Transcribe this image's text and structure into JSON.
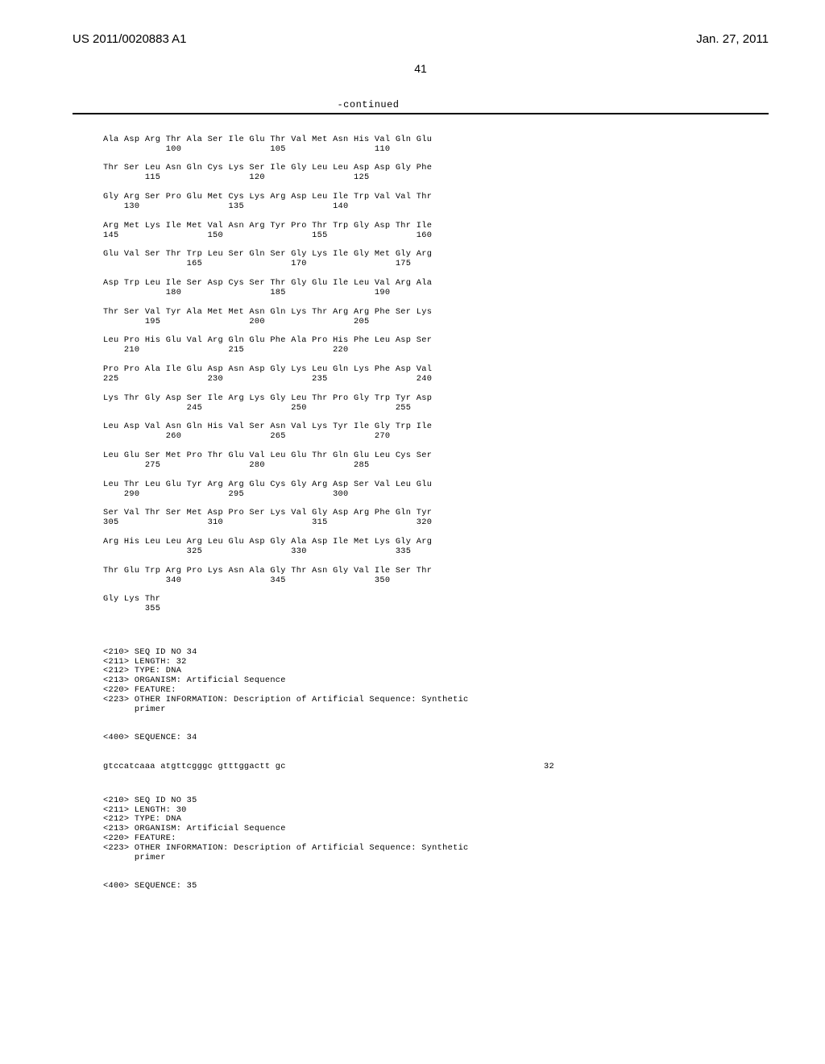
{
  "header": {
    "pub_no": "US 2011/0020883 A1",
    "pub_date": "Jan. 27, 2011"
  },
  "page_number": "41",
  "continued_label": "-continued",
  "protein_rows": [
    {
      "aa": "Ala Asp Arg Thr Ala Ser Ile Glu Thr Val Met Asn His Val Gln Glu",
      "nums": "            100                 105                 110"
    },
    {
      "aa": "Thr Ser Leu Asn Gln Cys Lys Ser Ile Gly Leu Leu Asp Asp Gly Phe",
      "nums": "        115                 120                 125"
    },
    {
      "aa": "Gly Arg Ser Pro Glu Met Cys Lys Arg Asp Leu Ile Trp Val Val Thr",
      "nums": "    130                 135                 140"
    },
    {
      "aa": "Arg Met Lys Ile Met Val Asn Arg Tyr Pro Thr Trp Gly Asp Thr Ile",
      "nums": "145                 150                 155                 160"
    },
    {
      "aa": "Glu Val Ser Thr Trp Leu Ser Gln Ser Gly Lys Ile Gly Met Gly Arg",
      "nums": "                165                 170                 175"
    },
    {
      "aa": "Asp Trp Leu Ile Ser Asp Cys Ser Thr Gly Glu Ile Leu Val Arg Ala",
      "nums": "            180                 185                 190"
    },
    {
      "aa": "Thr Ser Val Tyr Ala Met Met Asn Gln Lys Thr Arg Arg Phe Ser Lys",
      "nums": "        195                 200                 205"
    },
    {
      "aa": "Leu Pro His Glu Val Arg Gln Glu Phe Ala Pro His Phe Leu Asp Ser",
      "nums": "    210                 215                 220"
    },
    {
      "aa": "Pro Pro Ala Ile Glu Asp Asn Asp Gly Lys Leu Gln Lys Phe Asp Val",
      "nums": "225                 230                 235                 240"
    },
    {
      "aa": "Lys Thr Gly Asp Ser Ile Arg Lys Gly Leu Thr Pro Gly Trp Tyr Asp",
      "nums": "                245                 250                 255"
    },
    {
      "aa": "Leu Asp Val Asn Gln His Val Ser Asn Val Lys Tyr Ile Gly Trp Ile",
      "nums": "            260                 265                 270"
    },
    {
      "aa": "Leu Glu Ser Met Pro Thr Glu Val Leu Glu Thr Gln Glu Leu Cys Ser",
      "nums": "        275                 280                 285"
    },
    {
      "aa": "Leu Thr Leu Glu Tyr Arg Arg Glu Cys Gly Arg Asp Ser Val Leu Glu",
      "nums": "    290                 295                 300"
    },
    {
      "aa": "Ser Val Thr Ser Met Asp Pro Ser Lys Val Gly Asp Arg Phe Gln Tyr",
      "nums": "305                 310                 315                 320"
    },
    {
      "aa": "Arg His Leu Leu Arg Leu Glu Asp Gly Ala Asp Ile Met Lys Gly Arg",
      "nums": "                325                 330                 335"
    },
    {
      "aa": "Thr Glu Trp Arg Pro Lys Asn Ala Gly Thr Asn Gly Val Ile Ser Thr",
      "nums": "            340                 345                 350"
    },
    {
      "aa": "Gly Lys Thr",
      "nums": "        355"
    }
  ],
  "seq34": {
    "lines": [
      "<210> SEQ ID NO 34",
      "<211> LENGTH: 32",
      "<212> TYPE: DNA",
      "<213> ORGANISM: Artificial Sequence",
      "<220> FEATURE:",
      "<223> OTHER INFORMATION: Description of Artificial Sequence: Synthetic",
      "      primer"
    ],
    "seq_label": "<400> SEQUENCE: 34",
    "nucleotide": "gtccatcaaa atgttcgggc gtttggactt gc",
    "length": "32"
  },
  "seq35": {
    "lines": [
      "<210> SEQ ID NO 35",
      "<211> LENGTH: 30",
      "<212> TYPE: DNA",
      "<213> ORGANISM: Artificial Sequence",
      "<220> FEATURE:",
      "<223> OTHER INFORMATION: Description of Artificial Sequence: Synthetic",
      "      primer"
    ],
    "seq_label": "<400> SEQUENCE: 35"
  }
}
